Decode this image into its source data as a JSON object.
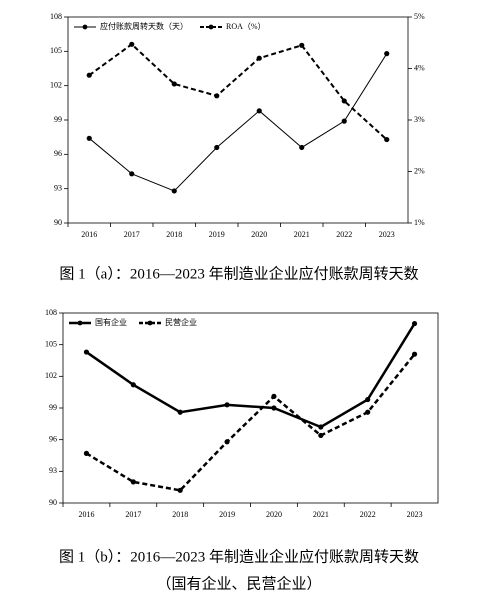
{
  "chart_data": [
    {
      "type": "line",
      "title": "图 1（a）：2016—2023 年制造业企业应付账款周转天数",
      "categories": [
        "2016",
        "2017",
        "2018",
        "2019",
        "2020",
        "2021",
        "2022",
        "2023"
      ],
      "series": [
        {
          "name": "应付账款周转天数（天）",
          "color": "#000000",
          "style": "solid",
          "linewidth": 1,
          "values": [
            97.4,
            94.3,
            92.8,
            96.6,
            99.8,
            96.6,
            98.9,
            104.8
          ]
        },
        {
          "name": "ROA（%）",
          "color": "#000000",
          "style": "dashed",
          "linewidth": 2,
          "axis": "y2",
          "values": [
            3.87,
            4.47,
            3.7,
            3.47,
            4.2,
            4.45,
            3.37,
            2.62
          ]
        }
      ],
      "ylim": [
        90,
        108
      ],
      "yticks": [
        90,
        93,
        96,
        99,
        102,
        105,
        108
      ],
      "y2lim": [
        1,
        5
      ],
      "y2ticks": [
        {
          "value": 1,
          "label": "1%"
        },
        {
          "value": 2,
          "label": "2%"
        },
        {
          "value": 3,
          "label": "3%"
        },
        {
          "value": 4,
          "label": "4%"
        },
        {
          "value": 5,
          "label": "5%"
        }
      ],
      "legend": "top-left",
      "grid": false
    },
    {
      "type": "line",
      "title": "图 1（b）：2016—2023 年制造业企业应付账款周转天数",
      "subtitle": "（国有企业、民营企业）",
      "categories": [
        "2016",
        "2017",
        "2018",
        "2019",
        "2020",
        "2021",
        "2022",
        "2023"
      ],
      "series": [
        {
          "name": "国有企业",
          "color": "#000000",
          "style": "solid",
          "linewidth": 2.5,
          "values": [
            104.3,
            101.2,
            98.6,
            99.3,
            99.0,
            97.2,
            99.8,
            107.0
          ]
        },
        {
          "name": "民营企业",
          "color": "#000000",
          "style": "dashed",
          "linewidth": 2.5,
          "values": [
            94.7,
            92.0,
            91.2,
            95.8,
            100.1,
            96.4,
            98.6,
            104.1
          ]
        }
      ],
      "ylim": [
        90,
        108
      ],
      "yticks": [
        90,
        93,
        96,
        99,
        102,
        105,
        108
      ],
      "legend": "top-left",
      "grid": false
    }
  ]
}
